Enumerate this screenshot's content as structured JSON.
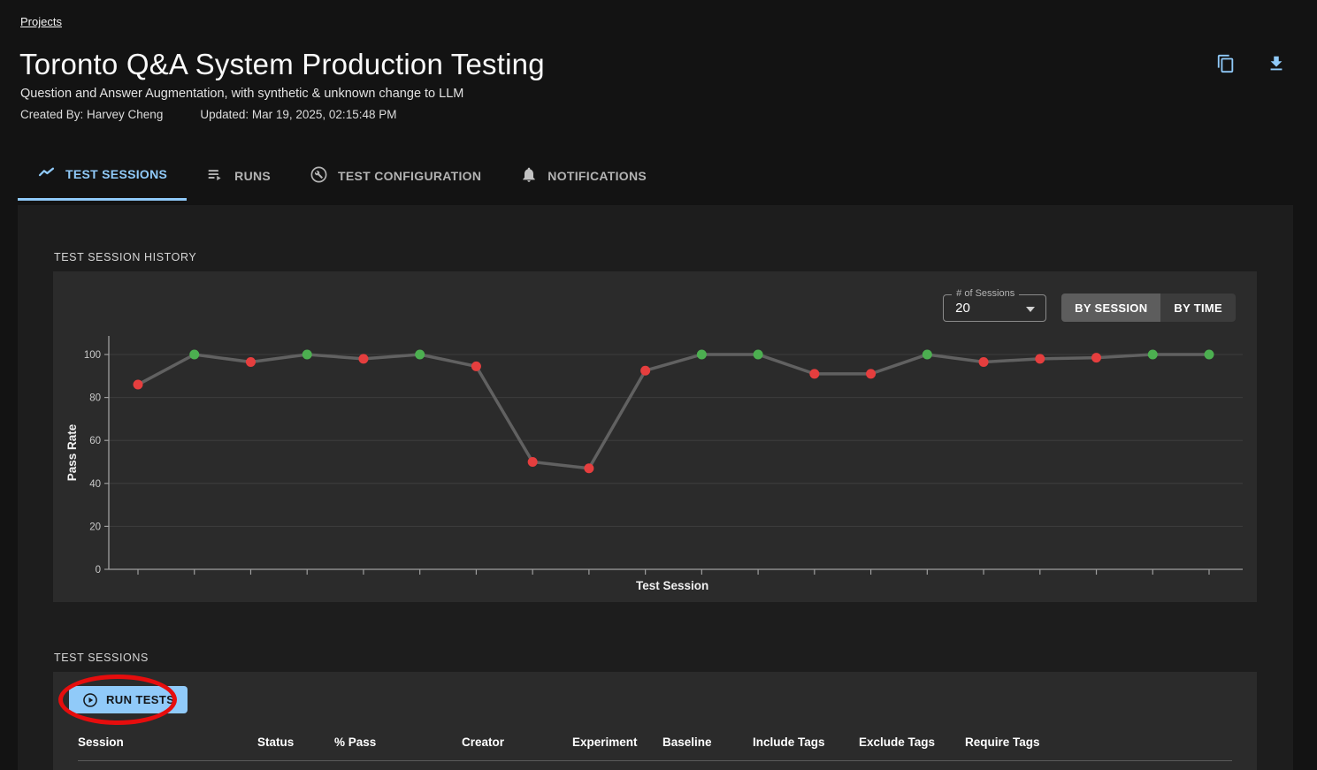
{
  "breadcrumb": {
    "label": "Projects"
  },
  "header": {
    "title": "Toronto Q&A System Production Testing",
    "subtitle": "Question and Answer Augmentation, with synthetic & unknown change to LLM",
    "created_by": "Created By: Harvey Cheng",
    "updated": "Updated: Mar 19, 2025, 02:15:48 PM"
  },
  "tabs": [
    {
      "label": "TEST SESSIONS",
      "active": true
    },
    {
      "label": "RUNS",
      "active": false
    },
    {
      "label": "TEST CONFIGURATION",
      "active": false
    },
    {
      "label": "NOTIFICATIONS",
      "active": false
    }
  ],
  "history_section": {
    "label": "TEST SESSION HISTORY",
    "sessions_select": {
      "label": "# of Sessions",
      "value": "20"
    },
    "view_toggle": {
      "options": [
        "BY SESSION",
        "BY TIME"
      ],
      "selected": "BY SESSION"
    }
  },
  "chart_data": {
    "type": "line",
    "title": "",
    "xlabel": "Test Session",
    "ylabel": "Pass Rate",
    "ylim": [
      0,
      100
    ],
    "yticks": [
      0,
      20,
      40,
      60,
      80,
      100
    ],
    "x": [
      1,
      2,
      3,
      4,
      5,
      6,
      7,
      8,
      9,
      10,
      11,
      12,
      13,
      14,
      15,
      16,
      17,
      18,
      19,
      20
    ],
    "series": [
      {
        "name": "Pass Rate",
        "values": [
          86,
          100,
          96.5,
          100,
          98,
          100,
          94.5,
          50,
          47,
          92.5,
          100,
          100,
          91,
          91,
          100,
          96.5,
          98,
          98.5,
          100,
          100
        ]
      }
    ],
    "point_status": [
      "fail",
      "pass",
      "fail",
      "pass",
      "fail",
      "pass",
      "fail",
      "fail",
      "fail",
      "fail",
      "pass",
      "pass",
      "fail",
      "fail",
      "pass",
      "fail",
      "fail",
      "fail",
      "pass",
      "pass"
    ],
    "legend": "none",
    "grid": "horizontal",
    "colors": {
      "pass": "#4caf50",
      "fail": "#e53e3e",
      "line": "#616161",
      "grid": "#3e3e3e",
      "axis": "#9e9e9e",
      "tick_label": "#c9c9c9",
      "label": "#f0f0f0"
    }
  },
  "sessions_section": {
    "label": "TEST SESSIONS",
    "run_tests_button": "RUN TESTS",
    "table_headers": [
      "Session",
      "Status",
      "% Pass",
      "Creator",
      "Experiment",
      "Baseline",
      "Include Tags",
      "Exclude Tags",
      "Require Tags"
    ]
  },
  "colors": {
    "accent": "#90caf9",
    "annotation_circle": "#e60d0d"
  }
}
